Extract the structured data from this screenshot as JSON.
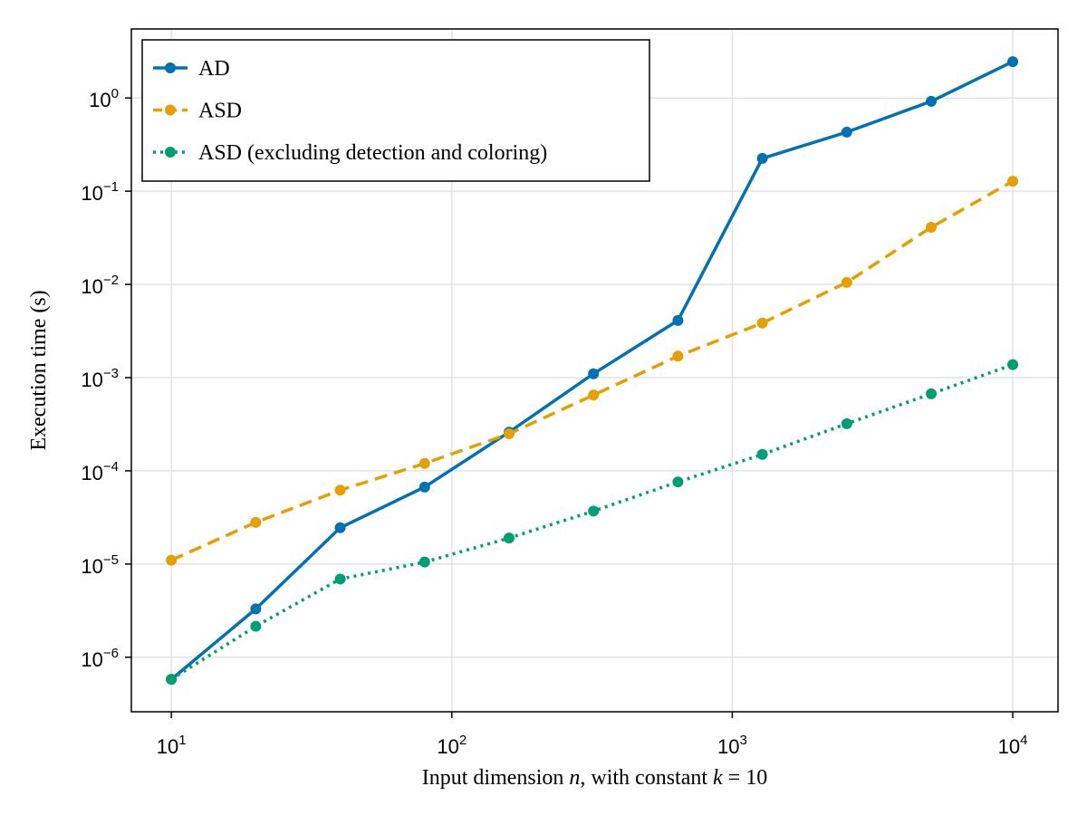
{
  "chart_data": {
    "type": "line",
    "xscale": "log",
    "yscale": "log",
    "xlabel_parts": [
      "Input dimension ",
      "n",
      ", with constant ",
      "k",
      " = 10"
    ],
    "ylabel": "Execution time (s)",
    "xlim": [
      7.2,
      14500
    ],
    "ylim": [
      2.6e-07,
      5.5
    ],
    "grid": true,
    "legend_position": "top-left",
    "x_ticks": [
      10,
      100,
      1000,
      10000
    ],
    "x_tick_exponents": [
      "1",
      "2",
      "3",
      "4"
    ],
    "y_ticks": [
      1e-06,
      1e-05,
      0.0001,
      0.001,
      0.01,
      0.1,
      1
    ],
    "y_tick_exponents": [
      "−6",
      "−5",
      "−4",
      "−3",
      "−2",
      "−1",
      "0"
    ],
    "tick_base": "10",
    "x": [
      10,
      20,
      40,
      80,
      160,
      320,
      640,
      1280,
      2560,
      5120,
      10000
    ],
    "series": [
      {
        "name": "AD",
        "color": "#0072b2",
        "line_style": "solid",
        "values": [
          5.8e-07,
          3.3e-06,
          2.45e-05,
          6.7e-05,
          0.00026,
          0.0011,
          0.0041,
          0.225,
          0.43,
          0.92,
          2.45
        ]
      },
      {
        "name": "ASD",
        "color": "#e69f00",
        "line_style": "dashed",
        "values": [
          1.1e-05,
          2.8e-05,
          6.2e-05,
          0.00012,
          0.00025,
          0.00065,
          0.0017,
          0.00385,
          0.0105,
          0.041,
          0.128
        ]
      },
      {
        "name": "ASD (excluding detection and coloring)",
        "color": "#009e73",
        "line_style": "dotted",
        "values": [
          5.8e-07,
          2.15e-06,
          6.9e-06,
          1.05e-05,
          1.9e-05,
          3.7e-05,
          7.6e-05,
          0.00015,
          0.00032,
          0.00067,
          0.00138
        ]
      }
    ]
  }
}
